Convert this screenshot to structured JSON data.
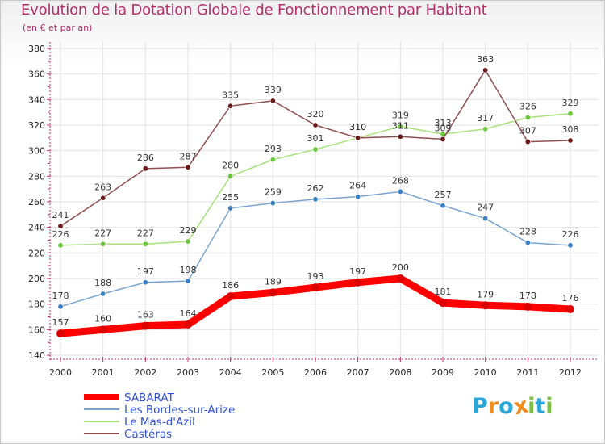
{
  "page": {
    "title": "Evolution de la Dotation Globale de Fonctionnement par Habitant",
    "subtitle": "(en € et par an)"
  },
  "logo": {
    "letters": [
      "P",
      "r",
      "o",
      "x",
      "i",
      "t",
      "i"
    ],
    "colors": [
      "#2aa6d9",
      "#f28c1e",
      "#2aa6d9",
      "#f28c1e",
      "#7cc043",
      "#2aa6d9",
      "#7cc043"
    ]
  },
  "chart_data": {
    "type": "line",
    "title": "Evolution de la Dotation Globale de Fonctionnement par Habitant",
    "subtitle": "(en € et par an)",
    "xlabel": "",
    "ylabel": "",
    "x": [
      2000,
      2001,
      2002,
      2003,
      2004,
      2005,
      2006,
      2007,
      2008,
      2009,
      2010,
      2011,
      2012
    ],
    "ylim": [
      140,
      380
    ],
    "yticks": [
      140,
      160,
      180,
      200,
      220,
      240,
      260,
      280,
      300,
      320,
      340,
      360,
      380
    ],
    "grid": true,
    "legend_position": "bottom-left",
    "series": [
      {
        "name": "SABARAT",
        "color": "#ff0000",
        "marker": "#dd0000",
        "bold": true,
        "values": [
          157,
          160,
          163,
          164,
          186,
          189,
          193,
          197,
          200,
          181,
          179,
          178,
          176
        ]
      },
      {
        "name": "Les Bordes-sur-Arize",
        "color": "#7ba3cf",
        "marker": "#3a7fc4",
        "bold": false,
        "values": [
          178,
          188,
          197,
          198,
          255,
          259,
          262,
          264,
          268,
          257,
          247,
          228,
          226
        ]
      },
      {
        "name": "Le Mas-d'Azil",
        "color": "#a8e07a",
        "marker": "#6cc43a",
        "bold": false,
        "values": [
          226,
          227,
          227,
          229,
          280,
          293,
          301,
          310,
          319,
          313,
          317,
          326,
          329
        ]
      },
      {
        "name": "Castéras",
        "color": "#8e4f50",
        "marker": "#6b1a1a",
        "bold": false,
        "values": [
          241,
          263,
          286,
          287,
          335,
          339,
          320,
          310,
          311,
          309,
          363,
          307,
          308
        ]
      }
    ]
  }
}
